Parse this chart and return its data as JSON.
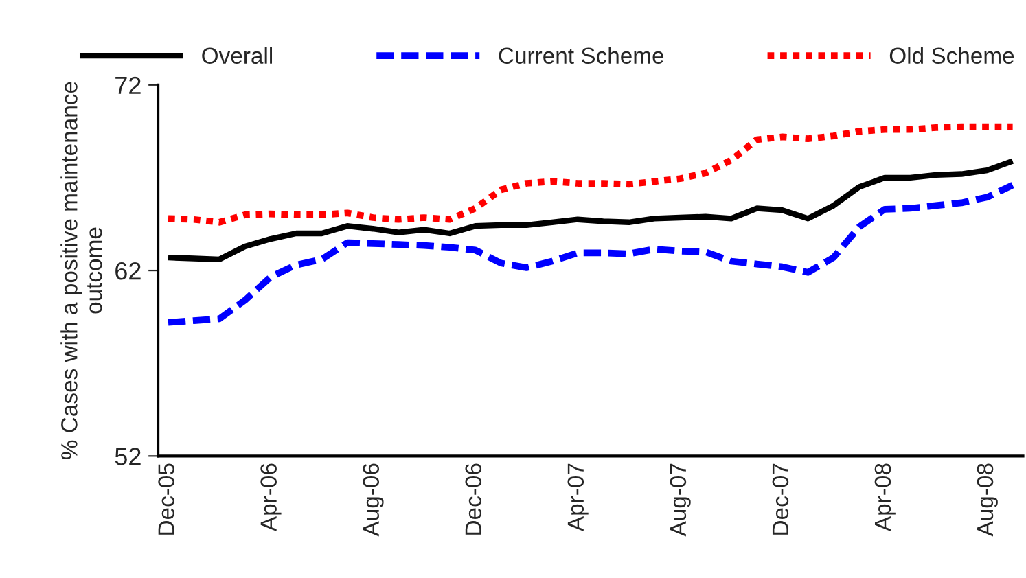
{
  "chart_data": {
    "type": "line",
    "ylabel": "% Cases with a positive maintenance outcome",
    "categories": [
      "Dec-05",
      null,
      null,
      null,
      "Apr-06",
      null,
      null,
      null,
      "Aug-06",
      null,
      null,
      null,
      "Dec-06",
      null,
      null,
      null,
      "Apr-07",
      null,
      null,
      null,
      "Aug-07",
      null,
      null,
      null,
      "Dec-07",
      null,
      null,
      null,
      "Apr-08",
      null,
      null,
      null,
      "Aug-08",
      null
    ],
    "series": [
      {
        "name": "Overall",
        "color": "#000000",
        "line_style": "solid",
        "values": [
          62.7,
          62.65,
          62.6,
          63.3,
          63.7,
          64.0,
          64.0,
          64.4,
          64.25,
          64.05,
          64.2,
          64.0,
          64.4,
          64.45,
          64.45,
          64.6,
          64.75,
          64.65,
          64.6,
          64.8,
          64.85,
          64.9,
          64.8,
          65.35,
          65.25,
          64.8,
          65.5,
          66.5,
          67.0,
          67.0,
          67.15,
          67.2,
          67.4,
          67.9
        ]
      },
      {
        "name": "Current Scheme",
        "color": "#0000ff",
        "line_style": "dashed",
        "values": [
          59.2,
          59.3,
          59.4,
          60.4,
          61.65,
          62.3,
          62.6,
          63.5,
          63.45,
          63.4,
          63.35,
          63.25,
          63.1,
          62.4,
          62.15,
          62.5,
          62.95,
          62.95,
          62.9,
          63.15,
          63.05,
          63.0,
          62.5,
          62.35,
          62.2,
          61.9,
          62.7,
          64.35,
          65.3,
          65.35,
          65.5,
          65.65,
          65.95,
          66.6
        ]
      },
      {
        "name": "Old Scheme",
        "color": "#ff0000",
        "line_style": "dotted",
        "values": [
          64.8,
          64.75,
          64.6,
          65.0,
          65.05,
          65.0,
          65.0,
          65.1,
          64.85,
          64.75,
          64.85,
          64.75,
          65.35,
          66.35,
          66.7,
          66.8,
          66.7,
          66.7,
          66.65,
          66.8,
          66.95,
          67.25,
          67.95,
          69.05,
          69.2,
          69.1,
          69.25,
          69.5,
          69.6,
          69.6,
          69.7,
          69.75,
          69.75,
          69.75
        ]
      }
    ],
    "ylim": [
      52,
      72
    ],
    "yticks": [
      52,
      62,
      72
    ],
    "grid": false,
    "legend": "top",
    "marker": "none"
  }
}
